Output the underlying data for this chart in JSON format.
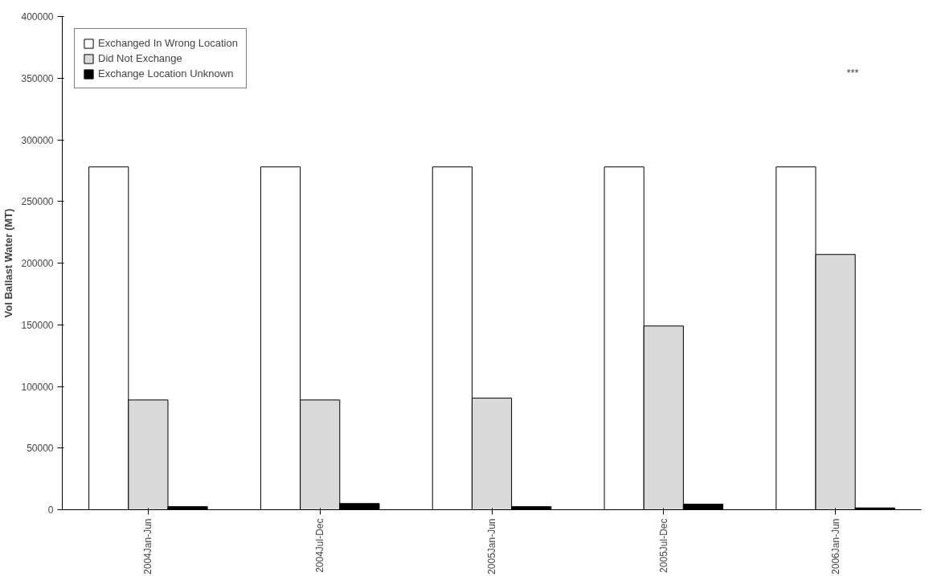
{
  "chart_data": {
    "type": "bar",
    "ylabel": "Vol Ballast Water (MT)",
    "categories": [
      "2004Jan-Jun",
      "2004Jul-Dec",
      "2005Jan-Jun",
      "2005Jul-Dec",
      "2006Jan-Jun"
    ],
    "series": [
      {
        "name": "Exchanged In Wrong Location",
        "color": "#ffffff",
        "values": [
          278000,
          278000,
          278000,
          278000,
          278000
        ]
      },
      {
        "name": "Did Not Exchange",
        "color": "#d9d9d9",
        "values": [
          89000,
          89000,
          90500,
          149000,
          207000
        ]
      },
      {
        "name": "Exchange Location Unknown",
        "color": "#000000",
        "values": [
          2500,
          5000,
          2500,
          4500,
          1500
        ]
      }
    ],
    "ylim": [
      0,
      400000
    ],
    "yticks": [
      0,
      50000,
      100000,
      150000,
      200000,
      250000,
      300000,
      350000,
      400000
    ],
    "annotations": [
      "***"
    ],
    "legend": "top left",
    "grid": false
  }
}
